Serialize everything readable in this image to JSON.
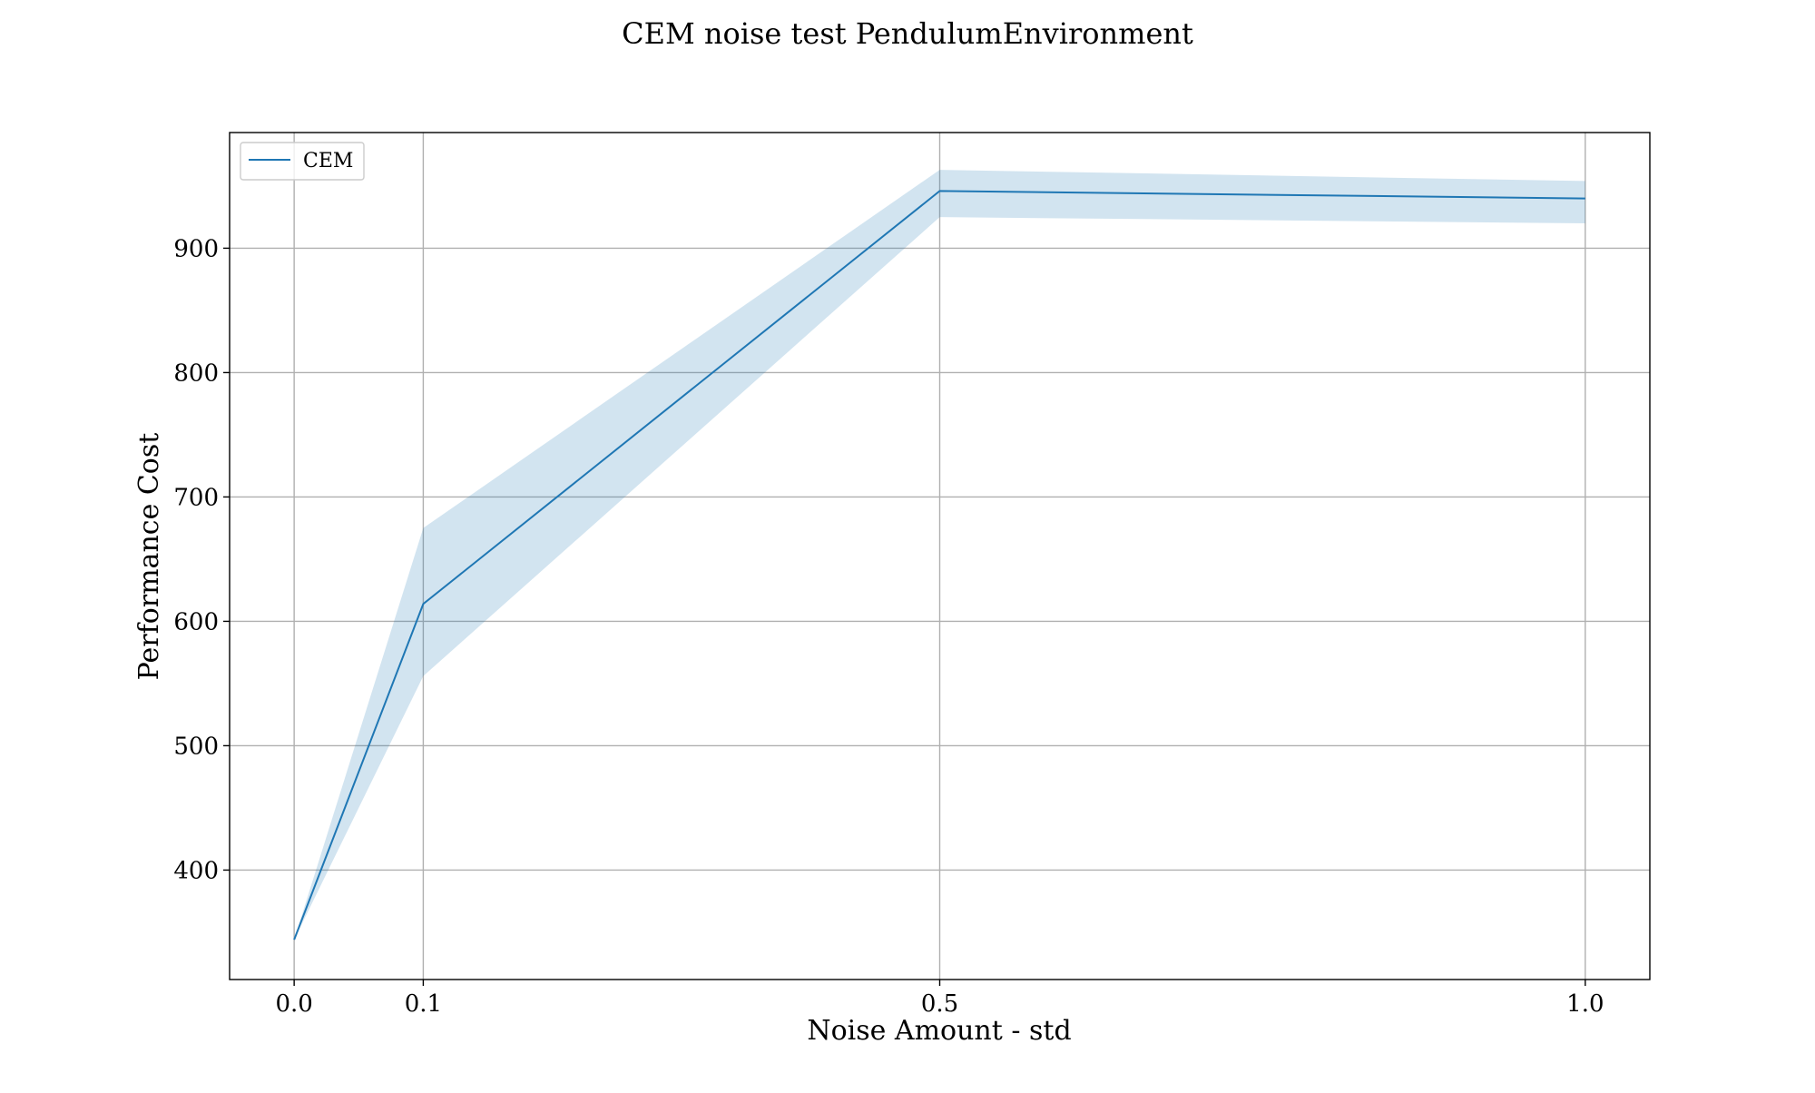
{
  "chart_data": {
    "type": "line",
    "title": "CEM noise test PendulumEnvironment",
    "xlabel": "Noise Amount - std",
    "ylabel": "Performance Cost",
    "x": [
      0.0,
      0.1,
      0.5,
      1.0
    ],
    "x_tick_values": [
      0.0,
      0.1,
      0.5,
      1.0
    ],
    "x_tick_labels": [
      "0.0",
      "0.1",
      "0.5",
      "1.0"
    ],
    "y_tick_values": [
      400,
      500,
      600,
      700,
      800,
      900
    ],
    "y_tick_labels": [
      "400",
      "500",
      "600",
      "700",
      "800",
      "900"
    ],
    "xlim": [
      -0.05,
      1.05
    ],
    "ylim": [
      312,
      993
    ],
    "grid": true,
    "legend_position": "top-left",
    "series": [
      {
        "name": "CEM",
        "color": "#1f77b4",
        "band_color": "#1f77b4",
        "values": [
          344,
          614,
          946,
          940
        ],
        "lower": [
          344,
          556,
          925,
          920
        ],
        "upper": [
          344,
          675,
          963,
          954
        ]
      }
    ]
  }
}
